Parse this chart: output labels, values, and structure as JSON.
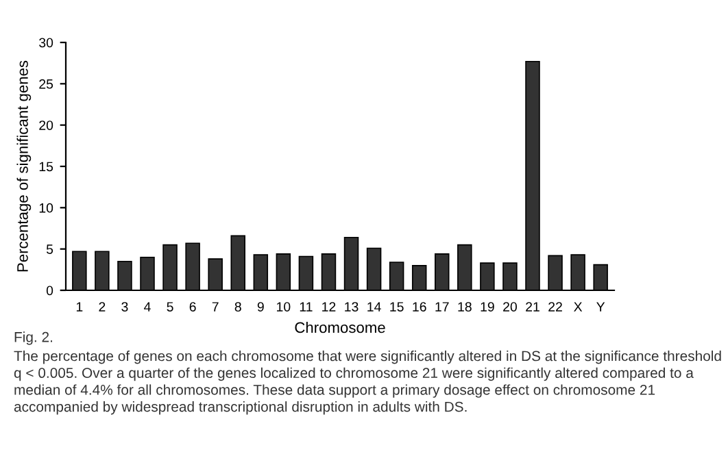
{
  "chart_data": {
    "type": "bar",
    "categories": [
      "1",
      "2",
      "3",
      "4",
      "5",
      "6",
      "7",
      "8",
      "9",
      "10",
      "11",
      "12",
      "13",
      "14",
      "15",
      "16",
      "17",
      "18",
      "19",
      "20",
      "21",
      "22",
      "X",
      "Y"
    ],
    "values": [
      4.7,
      4.7,
      3.5,
      4.0,
      5.5,
      5.7,
      3.8,
      6.6,
      4.3,
      4.4,
      4.1,
      4.4,
      6.4,
      5.1,
      3.4,
      3.0,
      4.4,
      5.5,
      3.3,
      3.3,
      27.7,
      4.2,
      4.3,
      3.1
    ],
    "color": "#333333",
    "xlabel": "Chromosome",
    "ylabel": "Percentage of significant genes",
    "ylim": [
      0,
      30
    ],
    "yticks": [
      0,
      5,
      10,
      15,
      20,
      25,
      30
    ],
    "grid": false,
    "annotations": [
      "Fig. 2.",
      "The percentage of genes on each chromosome that were significantly altered in DS at the significance threshold q < 0.005. Over a quarter of the genes localized to chromosome 21 were significantly altered compared to a median of 4.4% for all chromosomes. These data support a primary dosage effect on chromosome 21 accompanied by widespread transcriptional disruption in adults with DS."
    ]
  }
}
